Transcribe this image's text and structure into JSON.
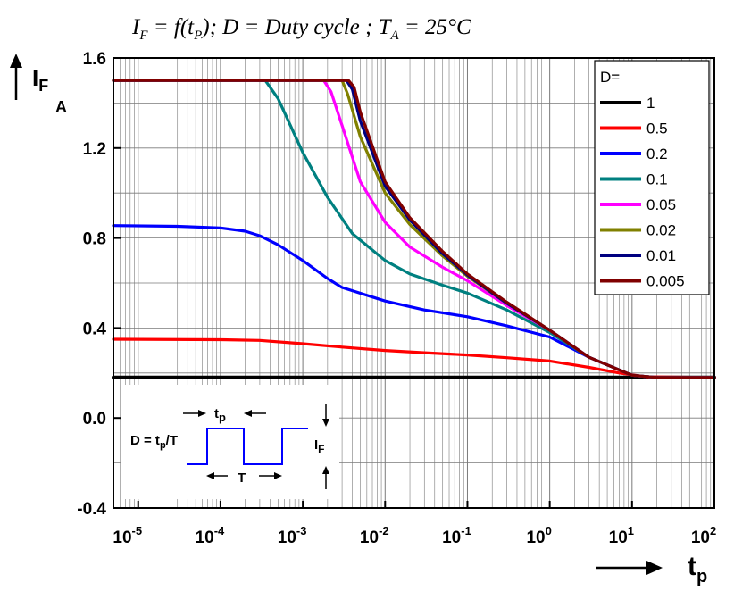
{
  "chart_data": {
    "type": "line",
    "title": "I_F = f(t_P); D = Duty cycle ; T_A = 25°C",
    "title_parts": {
      "i": "I",
      "f_sub": "F",
      "eq1": " = f(t",
      "p_sub": "P",
      "mid": "); D = Duty cycle ; T",
      "a_sub": "A",
      "end": " = 25°C"
    },
    "xlabel": {
      "main": "t",
      "sub": "p"
    },
    "ylabel": {
      "main": "I",
      "sub": "F",
      "unit": "A"
    },
    "x_scale": "log",
    "xlim": [
      5e-06,
      100
    ],
    "ylim": [
      -0.4,
      1.6
    ],
    "grid": true,
    "x_ticks": [
      {
        "value": 1e-05,
        "base": "10",
        "exp": "-5"
      },
      {
        "value": 0.0001,
        "base": "10",
        "exp": "-4"
      },
      {
        "value": 0.001,
        "base": "10",
        "exp": "-3"
      },
      {
        "value": 0.01,
        "base": "10",
        "exp": "-2"
      },
      {
        "value": 0.1,
        "base": "10",
        "exp": "-1"
      },
      {
        "value": 1,
        "base": "10",
        "exp": "0"
      },
      {
        "value": 10,
        "base": "10",
        "exp": "1"
      },
      {
        "value": 100,
        "base": "10",
        "exp": "2"
      }
    ],
    "y_ticks": [
      {
        "value": -0.4,
        "label": "-0.4"
      },
      {
        "value": 0.0,
        "label": "0.0"
      },
      {
        "value": 0.4,
        "label": "0.4"
      },
      {
        "value": 0.8,
        "label": "0.8"
      },
      {
        "value": 1.2,
        "label": "1.2"
      },
      {
        "value": 1.6,
        "label": "1.6"
      }
    ],
    "legend": {
      "title": "D=",
      "position": "top-right"
    },
    "series": [
      {
        "name": "1",
        "color": "#000000",
        "points": [
          [
            5e-06,
            0.18
          ],
          [
            100,
            0.18
          ]
        ]
      },
      {
        "name": "0.5",
        "color": "#ff0000",
        "points": [
          [
            5e-06,
            0.35
          ],
          [
            0.0001,
            0.348
          ],
          [
            0.0003,
            0.345
          ],
          [
            0.001,
            0.33
          ],
          [
            0.003,
            0.315
          ],
          [
            0.01,
            0.3
          ],
          [
            0.03,
            0.29
          ],
          [
            0.1,
            0.28
          ],
          [
            0.3,
            0.268
          ],
          [
            1,
            0.253
          ],
          [
            3,
            0.225
          ],
          [
            7,
            0.2
          ],
          [
            15,
            0.183
          ],
          [
            100,
            0.18
          ]
        ]
      },
      {
        "name": "0.2",
        "color": "#0000ff",
        "points": [
          [
            5e-06,
            0.855
          ],
          [
            3e-05,
            0.852
          ],
          [
            0.0001,
            0.845
          ],
          [
            0.0002,
            0.83
          ],
          [
            0.0003,
            0.81
          ],
          [
            0.0005,
            0.77
          ],
          [
            0.001,
            0.7
          ],
          [
            0.002,
            0.62
          ],
          [
            0.003,
            0.58
          ],
          [
            0.01,
            0.52
          ],
          [
            0.03,
            0.48
          ],
          [
            0.1,
            0.45
          ],
          [
            0.3,
            0.41
          ],
          [
            1,
            0.36
          ],
          [
            3,
            0.27
          ],
          [
            10,
            0.19
          ],
          [
            20,
            0.18
          ],
          [
            100,
            0.18
          ]
        ]
      },
      {
        "name": "0.1",
        "color": "#008080",
        "points": [
          [
            5e-06,
            1.5
          ],
          [
            0.00035,
            1.5
          ],
          [
            0.0005,
            1.42
          ],
          [
            0.001,
            1.18
          ],
          [
            0.002,
            0.98
          ],
          [
            0.004,
            0.82
          ],
          [
            0.01,
            0.7
          ],
          [
            0.02,
            0.64
          ],
          [
            0.05,
            0.59
          ],
          [
            0.1,
            0.555
          ],
          [
            0.3,
            0.48
          ],
          [
            1,
            0.38
          ],
          [
            3,
            0.27
          ],
          [
            10,
            0.19
          ],
          [
            20,
            0.18
          ],
          [
            100,
            0.18
          ]
        ]
      },
      {
        "name": "0.05",
        "color": "#ff00ff",
        "points": [
          [
            5e-06,
            1.5
          ],
          [
            0.0018,
            1.5
          ],
          [
            0.0022,
            1.45
          ],
          [
            0.003,
            1.3
          ],
          [
            0.005,
            1.05
          ],
          [
            0.01,
            0.87
          ],
          [
            0.02,
            0.76
          ],
          [
            0.05,
            0.67
          ],
          [
            0.1,
            0.61
          ],
          [
            0.3,
            0.5
          ],
          [
            1,
            0.39
          ],
          [
            3,
            0.27
          ],
          [
            10,
            0.19
          ],
          [
            20,
            0.18
          ],
          [
            100,
            0.18
          ]
        ]
      },
      {
        "name": "0.02",
        "color": "#808000",
        "points": [
          [
            5e-06,
            1.5
          ],
          [
            0.003,
            1.5
          ],
          [
            0.0035,
            1.44
          ],
          [
            0.005,
            1.25
          ],
          [
            0.01,
            1.0
          ],
          [
            0.02,
            0.86
          ],
          [
            0.05,
            0.72
          ],
          [
            0.1,
            0.63
          ],
          [
            0.3,
            0.51
          ],
          [
            1,
            0.39
          ],
          [
            3,
            0.27
          ],
          [
            10,
            0.19
          ],
          [
            20,
            0.18
          ],
          [
            100,
            0.18
          ]
        ]
      },
      {
        "name": "0.01",
        "color": "#000080",
        "points": [
          [
            5e-06,
            1.5
          ],
          [
            0.0034,
            1.5
          ],
          [
            0.004,
            1.46
          ],
          [
            0.005,
            1.32
          ],
          [
            0.01,
            1.03
          ],
          [
            0.02,
            0.88
          ],
          [
            0.05,
            0.73
          ],
          [
            0.1,
            0.635
          ],
          [
            0.3,
            0.51
          ],
          [
            1,
            0.39
          ],
          [
            3,
            0.27
          ],
          [
            10,
            0.19
          ],
          [
            20,
            0.18
          ],
          [
            100,
            0.18
          ]
        ]
      },
      {
        "name": "0.005",
        "color": "#800000",
        "points": [
          [
            5e-06,
            1.5
          ],
          [
            0.0036,
            1.5
          ],
          [
            0.0042,
            1.47
          ],
          [
            0.005,
            1.36
          ],
          [
            0.01,
            1.05
          ],
          [
            0.02,
            0.89
          ],
          [
            0.05,
            0.74
          ],
          [
            0.1,
            0.64
          ],
          [
            0.3,
            0.515
          ],
          [
            1,
            0.39
          ],
          [
            3,
            0.27
          ],
          [
            10,
            0.19
          ],
          [
            20,
            0.18
          ],
          [
            100,
            0.18
          ]
        ]
      }
    ],
    "inset": {
      "formula_left": "D = t",
      "formula_sub": "p",
      "formula_right": "/T",
      "tp_label": "t",
      "tp_sub": "p",
      "T_label": "T",
      "if_label": "I",
      "if_sub": "F",
      "wave_color": "#0000ff"
    }
  }
}
